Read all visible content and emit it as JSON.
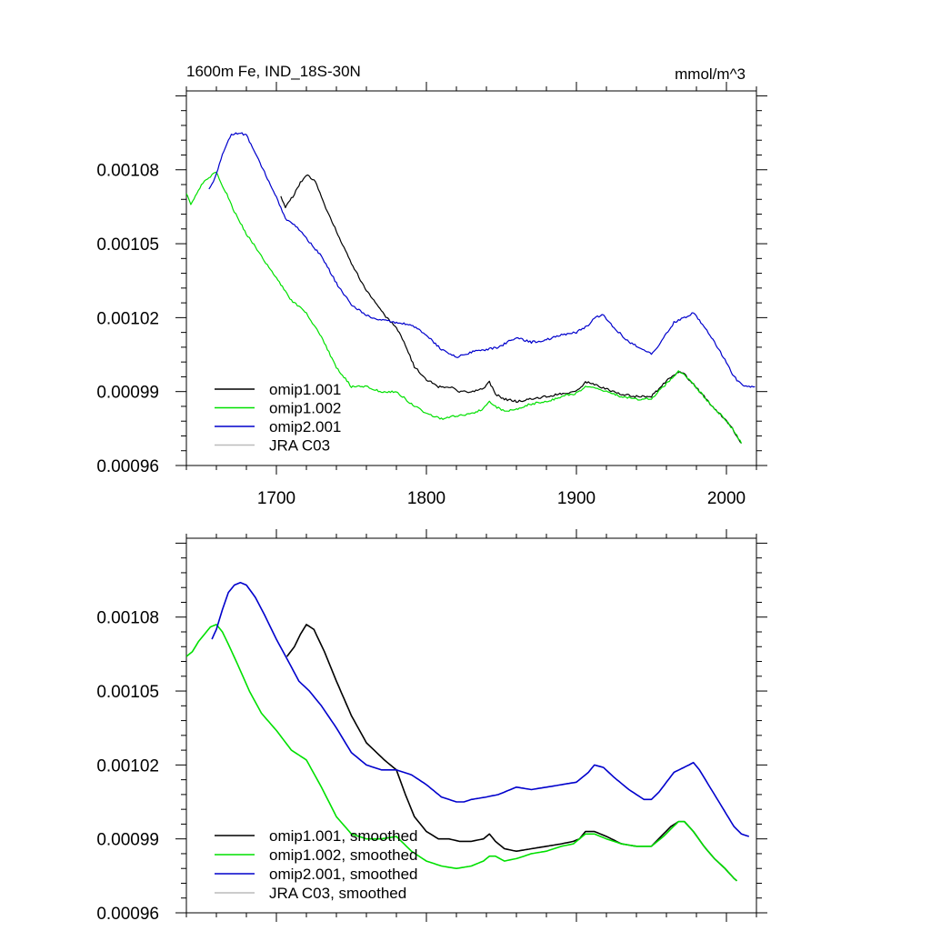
{
  "chart_data": [
    {
      "type": "line",
      "title_left": "1600m Fe, IND_18S-30N",
      "title_right": "mmol/m^3",
      "xlim": [
        1640,
        2020
      ],
      "ylim": [
        0.00096,
        0.001112
      ],
      "xticks": [
        1700,
        1800,
        1900,
        2000
      ],
      "xtick_labels": [
        "1700",
        "1800",
        "1900",
        "2000"
      ],
      "yticks": [
        0.00096,
        0.00099,
        0.00102,
        0.00105,
        0.00108
      ],
      "ytick_labels": [
        "0.00096",
        "0.00099",
        "0.00102",
        "0.00105",
        "0.00108"
      ],
      "noisy": true,
      "series": [
        {
          "name": "omip1.001",
          "color": "#000000",
          "x": [
            1703,
            1706,
            1712,
            1716,
            1721,
            1726,
            1732,
            1740,
            1750,
            1760,
            1772,
            1780,
            1786,
            1792,
            1800,
            1808,
            1815,
            1822,
            1830,
            1838,
            1842,
            1846,
            1852,
            1860,
            1870,
            1880,
            1890,
            1898,
            1902,
            1906,
            1912,
            1920,
            1930,
            1940,
            1950,
            1958,
            1963,
            1968,
            1972,
            1978,
            1985,
            1992,
            1999,
            2005,
            2010
          ],
          "values": [
            0.001069,
            0.001065,
            0.00107,
            0.001075,
            0.001078,
            0.001075,
            0.001066,
            0.001055,
            0.001042,
            0.001031,
            0.001021,
            0.001016,
            0.001009,
            0.001,
            0.000995,
            0.000992,
            0.000992,
            0.00099,
            0.00099,
            0.000991,
            0.000994,
            0.000989,
            0.000987,
            0.000986,
            0.000987,
            0.000988,
            0.000989,
            0.00099,
            0.000991,
            0.000994,
            0.000993,
            0.000991,
            0.000989,
            0.000988,
            0.000988,
            0.000993,
            0.000996,
            0.000998,
            0.000997,
            0.000993,
            0.000988,
            0.000983,
            0.000979,
            0.000974,
            0.000969
          ]
        },
        {
          "name": "omip1.002",
          "color": "#00e000",
          "x": [
            1640,
            1643,
            1646,
            1650,
            1655,
            1660,
            1663,
            1667,
            1672,
            1680,
            1690,
            1700,
            1710,
            1720,
            1730,
            1740,
            1750,
            1760,
            1770,
            1780,
            1790,
            1800,
            1810,
            1820,
            1830,
            1838,
            1842,
            1846,
            1852,
            1860,
            1870,
            1880,
            1890,
            1898,
            1902,
            1906,
            1912,
            1920,
            1930,
            1940,
            1950,
            1958,
            1963,
            1968,
            1972,
            1978,
            1985,
            1992,
            1999,
            2005,
            2010
          ],
          "values": [
            0.00107,
            0.001066,
            0.001069,
            0.001074,
            0.001077,
            0.001079,
            0.001075,
            0.00107,
            0.001063,
            0.001054,
            0.001045,
            0.001036,
            0.001027,
            0.001022,
            0.001012,
            0.001,
            0.000992,
            0.000992,
            0.00099,
            0.00099,
            0.000985,
            0.000981,
            0.000979,
            0.00098,
            0.000981,
            0.000983,
            0.000986,
            0.000984,
            0.000982,
            0.000983,
            0.000985,
            0.000986,
            0.000988,
            0.000989,
            0.00099,
            0.000992,
            0.000992,
            0.00099,
            0.000988,
            0.000987,
            0.000987,
            0.000992,
            0.000995,
            0.000998,
            0.000997,
            0.000993,
            0.000988,
            0.000983,
            0.000979,
            0.000974,
            0.000969
          ]
        },
        {
          "name": "omip2.001",
          "color": "#0000cc",
          "x": [
            1655,
            1658,
            1662,
            1665,
            1670,
            1675,
            1680,
            1685,
            1692,
            1700,
            1706,
            1712,
            1720,
            1730,
            1740,
            1750,
            1760,
            1770,
            1780,
            1790,
            1800,
            1810,
            1820,
            1825,
            1830,
            1840,
            1848,
            1860,
            1870,
            1880,
            1890,
            1900,
            1908,
            1912,
            1918,
            1925,
            1935,
            1945,
            1950,
            1955,
            1965,
            1975,
            1978,
            1982,
            1990,
            2000,
            2005,
            2010,
            2015,
            2019
          ],
          "values": [
            0.001072,
            0.001075,
            0.001082,
            0.001088,
            0.001094,
            0.001095,
            0.001094,
            0.001088,
            0.001079,
            0.001069,
            0.00106,
            0.001058,
            0.001052,
            0.001045,
            0.001034,
            0.001025,
            0.001021,
            0.001019,
            0.001018,
            0.001017,
            0.001013,
            0.001007,
            0.001004,
            0.001005,
            0.001006,
            0.001007,
            0.001008,
            0.001012,
            0.00101,
            0.001011,
            0.001013,
            0.001014,
            0.001017,
            0.00102,
            0.001021,
            0.001016,
            0.00101,
            0.001007,
            0.001005,
            0.001009,
            0.001018,
            0.001021,
            0.001022,
            0.001019,
            0.001012,
            0.001002,
            0.000996,
            0.000993,
            0.000992,
            0.000992
          ]
        },
        {
          "name": "JRA C03",
          "color": "#bbbbbb",
          "x": [],
          "values": []
        }
      ]
    },
    {
      "type": "line",
      "title_left": "",
      "title_right": "",
      "xlim": [
        1640,
        2020
      ],
      "ylim": [
        0.00096,
        0.001112
      ],
      "xticks": [
        1700,
        1800,
        1900,
        2000
      ],
      "xtick_labels": [
        "",
        "",
        "",
        ""
      ],
      "yticks": [
        0.00096,
        0.00099,
        0.00102,
        0.00105,
        0.00108
      ],
      "ytick_labels": [
        "0.00096",
        "0.00099",
        "0.00102",
        "0.00105",
        "0.00108"
      ],
      "noisy": false,
      "series": [
        {
          "name": "omip1.001, smoothed",
          "color": "#000000",
          "x": [
            1707,
            1712,
            1716,
            1720,
            1725,
            1732,
            1740,
            1750,
            1760,
            1772,
            1780,
            1786,
            1792,
            1800,
            1808,
            1815,
            1822,
            1830,
            1838,
            1842,
            1846,
            1852,
            1860,
            1870,
            1880,
            1890,
            1898,
            1902,
            1906,
            1912,
            1920,
            1930,
            1940,
            1950,
            1958,
            1963,
            1968,
            1972,
            1978,
            1985,
            1992,
            1999,
            2005,
            2007
          ],
          "values": [
            0.001064,
            0.001068,
            0.001073,
            0.001077,
            0.001075,
            0.001066,
            0.001054,
            0.00104,
            0.001029,
            0.001022,
            0.001018,
            0.001008,
            0.000999,
            0.000993,
            0.00099,
            0.00099,
            0.000989,
            0.000989,
            0.00099,
            0.000992,
            0.000989,
            0.000986,
            0.000985,
            0.000986,
            0.000987,
            0.000988,
            0.000989,
            0.00099,
            0.000993,
            0.000993,
            0.000991,
            0.000988,
            0.000987,
            0.000987,
            0.000992,
            0.000995,
            0.000997,
            0.000997,
            0.000993,
            0.000987,
            0.000982,
            0.000978,
            0.000974,
            0.000973
          ]
        },
        {
          "name": "omip1.002, smoothed",
          "color": "#00e000",
          "x": [
            1640,
            1644,
            1648,
            1652,
            1656,
            1660,
            1664,
            1668,
            1674,
            1682,
            1690,
            1700,
            1710,
            1720,
            1730,
            1740,
            1750,
            1760,
            1770,
            1780,
            1790,
            1800,
            1810,
            1820,
            1830,
            1838,
            1842,
            1846,
            1852,
            1860,
            1870,
            1880,
            1890,
            1898,
            1902,
            1906,
            1912,
            1920,
            1930,
            1940,
            1950,
            1958,
            1963,
            1968,
            1972,
            1978,
            1985,
            1992,
            1999,
            2005,
            2007
          ],
          "values": [
            0.001064,
            0.001066,
            0.00107,
            0.001073,
            0.001076,
            0.001077,
            0.001074,
            0.001069,
            0.001061,
            0.00105,
            0.001041,
            0.001034,
            0.001026,
            0.001022,
            0.001011,
            0.000999,
            0.000992,
            0.00099,
            0.00099,
            0.000991,
            0.000985,
            0.000981,
            0.000979,
            0.000978,
            0.000979,
            0.000981,
            0.000983,
            0.000983,
            0.000981,
            0.000982,
            0.000984,
            0.000985,
            0.000987,
            0.000988,
            0.00099,
            0.000992,
            0.000992,
            0.00099,
            0.000988,
            0.000987,
            0.000987,
            0.000991,
            0.000994,
            0.000997,
            0.000997,
            0.000993,
            0.000987,
            0.000982,
            0.000978,
            0.000974,
            0.000973
          ]
        },
        {
          "name": "omip2.001, smoothed",
          "color": "#0000cc",
          "x": [
            1657,
            1660,
            1664,
            1668,
            1672,
            1676,
            1680,
            1686,
            1692,
            1700,
            1708,
            1715,
            1722,
            1730,
            1740,
            1750,
            1760,
            1770,
            1780,
            1790,
            1800,
            1810,
            1820,
            1825,
            1830,
            1840,
            1848,
            1860,
            1870,
            1880,
            1890,
            1900,
            1908,
            1912,
            1918,
            1925,
            1935,
            1945,
            1950,
            1955,
            1965,
            1975,
            1978,
            1982,
            1990,
            2000,
            2005,
            2010,
            2015
          ],
          "values": [
            0.001071,
            0.001075,
            0.001083,
            0.00109,
            0.001093,
            0.001094,
            0.001093,
            0.001088,
            0.001081,
            0.001071,
            0.001062,
            0.001054,
            0.00105,
            0.001044,
            0.001035,
            0.001025,
            0.00102,
            0.001018,
            0.001018,
            0.001016,
            0.001012,
            0.001007,
            0.001005,
            0.001005,
            0.001006,
            0.001007,
            0.001008,
            0.001011,
            0.00101,
            0.001011,
            0.001012,
            0.001013,
            0.001017,
            0.00102,
            0.001019,
            0.001015,
            0.00101,
            0.001006,
            0.001006,
            0.001009,
            0.001017,
            0.00102,
            0.001021,
            0.001018,
            0.00101,
            0.001,
            0.000995,
            0.000992,
            0.000991
          ]
        },
        {
          "name": "JRA C03, smoothed",
          "color": "#bbbbbb",
          "x": [],
          "values": []
        }
      ]
    }
  ]
}
